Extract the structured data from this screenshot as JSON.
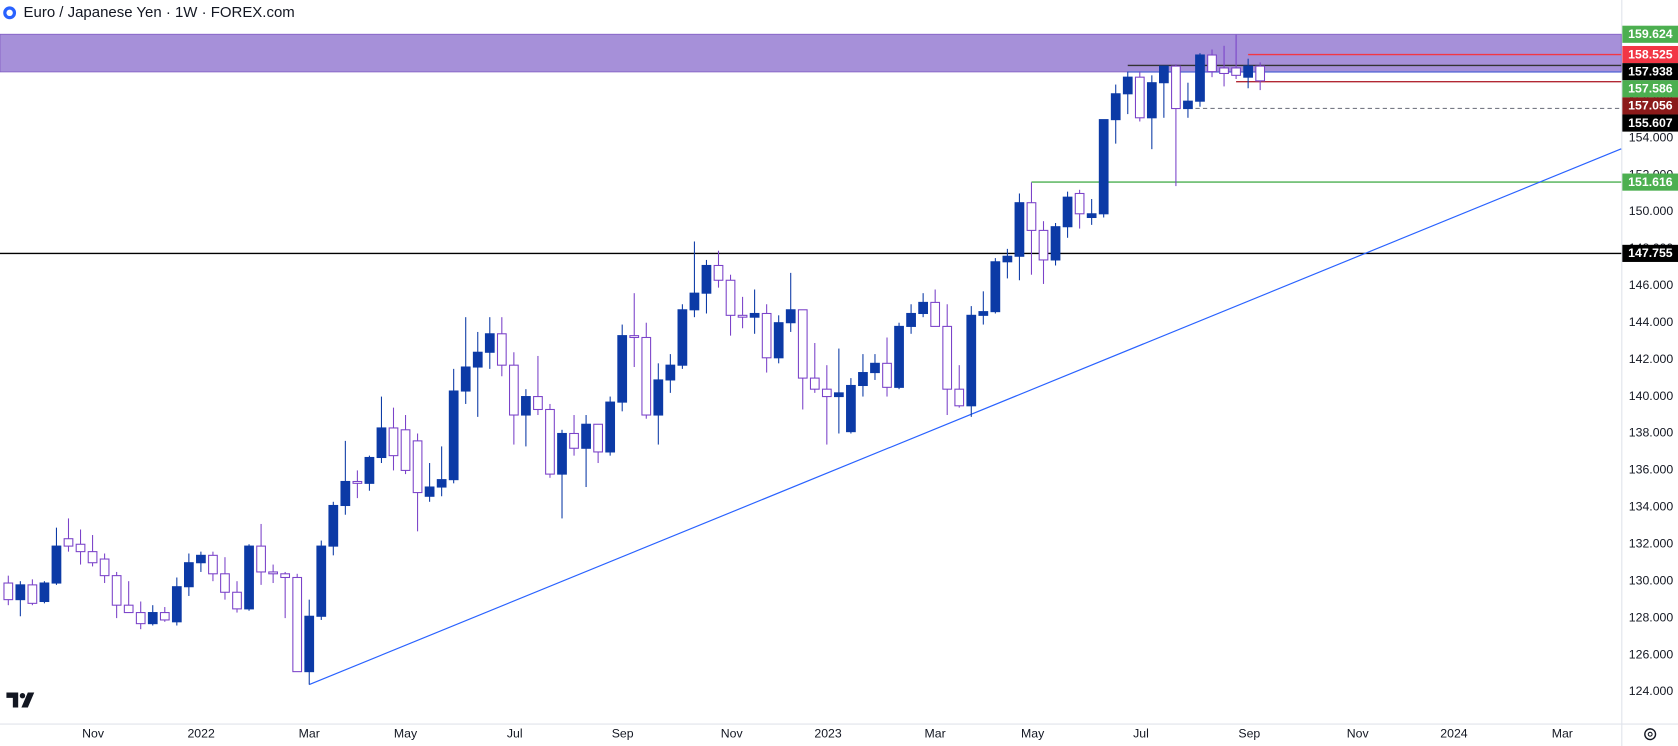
{
  "chart_data": {
    "type": "candlestick",
    "title": "Euro / Japanese Yen · 1W · FOREX.com",
    "up_color": "#0c3aa6",
    "down_color": "#7b43c9",
    "open": [
      129.9,
      129.0,
      129.8,
      128.9,
      129.9,
      132.3,
      132.0,
      131.6,
      131.2,
      130.3,
      128.7,
      128.3,
      127.7,
      128.3,
      127.8,
      129.7,
      131.0,
      131.4,
      130.4,
      129.4,
      128.5,
      131.9,
      130.5,
      130.4,
      130.2,
      125.1,
      128.1,
      131.9,
      134.1,
      135.4,
      135.3,
      136.7,
      138.3,
      138.2,
      137.6,
      134.6,
      135.1,
      135.5,
      140.3,
      141.6,
      142.4,
      143.4,
      141.7,
      139.0,
      140.0,
      139.3,
      135.8,
      138.0,
      137.2,
      138.5,
      137.0,
      139.7,
      143.3,
      143.2,
      139.0,
      140.9,
      141.7,
      144.7,
      145.6,
      147.1,
      146.3,
      144.4,
      144.3,
      144.5,
      142.1,
      144.0,
      144.7,
      141.0,
      140.4,
      140.0,
      138.1,
      140.6,
      141.3,
      141.8,
      140.5,
      143.8,
      144.5,
      145.1,
      143.8,
      140.4,
      139.5,
      144.4,
      144.6,
      147.3,
      147.6,
      150.5,
      149.0,
      147.4,
      149.2,
      151.0,
      149.7,
      149.9,
      155.0,
      156.4,
      157.3,
      155.1,
      157.0,
      157.9,
      155.6,
      156.0,
      158.5,
      157.8,
      157.8,
      157.3,
      157.9
    ],
    "high": [
      130.3,
      130.0,
      130.1,
      130.0,
      132.9,
      133.4,
      132.8,
      132.5,
      131.5,
      130.5,
      130.0,
      128.9,
      128.7,
      128.6,
      130.2,
      131.5,
      131.6,
      131.6,
      131.3,
      130.0,
      132.0,
      133.1,
      130.9,
      130.5,
      130.4,
      129.0,
      132.2,
      134.3,
      137.6,
      136.0,
      136.8,
      140.0,
      139.4,
      139.0,
      138.0,
      136.4,
      137.3,
      141.5,
      144.3,
      143.5,
      144.3,
      144.3,
      142.4,
      140.4,
      142.2,
      139.6,
      138.2,
      139.0,
      139.0,
      138.5,
      140.0,
      143.9,
      145.6,
      144.0,
      141.8,
      142.3,
      145.0,
      148.4,
      147.4,
      147.9,
      146.6,
      145.4,
      145.8,
      145.0,
      144.4,
      146.7,
      144.7,
      142.9,
      141.7,
      142.6,
      141.0,
      142.3,
      142.3,
      143.2,
      144.0,
      145.0,
      145.6,
      145.8,
      145.0,
      141.7,
      144.9,
      145.7,
      147.5,
      148.0,
      151.0,
      151.6,
      149.5,
      149.4,
      151.1,
      151.2,
      150.7,
      155.0,
      156.9,
      157.6,
      157.6,
      157.4,
      157.9,
      158.0,
      157.0,
      158.6,
      158.8,
      159.0,
      159.6,
      158.3,
      158.1
    ],
    "low": [
      128.7,
      128.1,
      128.7,
      128.8,
      129.8,
      131.6,
      130.9,
      130.8,
      129.9,
      128.0,
      128.3,
      127.4,
      127.6,
      127.8,
      127.6,
      129.2,
      130.5,
      130.0,
      129.0,
      128.3,
      128.4,
      129.8,
      129.9,
      128.0,
      125.1,
      124.4,
      127.9,
      131.4,
      133.6,
      134.5,
      134.9,
      136.4,
      136.0,
      135.8,
      132.7,
      134.3,
      134.6,
      135.3,
      139.6,
      138.9,
      141.5,
      141.1,
      137.4,
      137.3,
      139.0,
      135.6,
      133.4,
      136.8,
      135.1,
      136.4,
      136.8,
      139.2,
      141.6,
      138.8,
      137.4,
      140.2,
      141.5,
      144.3,
      144.5,
      145.9,
      143.3,
      143.7,
      143.4,
      141.3,
      141.8,
      143.5,
      139.3,
      140.2,
      137.4,
      138.0,
      138.0,
      140.0,
      140.9,
      140.0,
      140.4,
      143.4,
      144.3,
      143.8,
      139.0,
      139.4,
      138.9,
      143.9,
      144.5,
      146.4,
      146.3,
      146.6,
      146.1,
      147.1,
      148.6,
      149.1,
      149.3,
      149.7,
      153.7,
      155.3,
      154.9,
      153.4,
      155.1,
      151.4,
      155.1,
      155.7,
      157.3,
      156.8,
      157.2,
      156.7,
      156.6
    ],
    "close": [
      129.0,
      129.8,
      128.8,
      129.9,
      131.9,
      131.9,
      131.6,
      131.0,
      130.3,
      128.7,
      128.3,
      127.7,
      128.3,
      127.9,
      129.7,
      131.0,
      131.4,
      130.4,
      129.4,
      128.5,
      131.9,
      130.5,
      130.4,
      130.2,
      125.1,
      128.1,
      131.9,
      134.1,
      135.4,
      135.3,
      136.7,
      138.3,
      136.8,
      136.0,
      134.8,
      135.1,
      135.5,
      140.3,
      141.6,
      142.4,
      143.4,
      141.7,
      139.0,
      140.0,
      139.3,
      135.8,
      138.0,
      137.2,
      138.5,
      137.0,
      139.7,
      143.3,
      143.2,
      139.0,
      140.9,
      141.7,
      144.7,
      145.6,
      147.1,
      146.3,
      144.4,
      144.3,
      144.5,
      142.1,
      144.0,
      144.7,
      141.0,
      140.4,
      140.0,
      140.2,
      140.6,
      141.3,
      141.8,
      140.5,
      143.8,
      144.5,
      145.1,
      143.8,
      140.4,
      139.5,
      144.4,
      144.6,
      147.3,
      147.6,
      150.5,
      149.0,
      147.4,
      149.2,
      150.8,
      149.9,
      149.9,
      155.0,
      156.4,
      157.3,
      155.1,
      157.0,
      157.9,
      155.6,
      156.0,
      158.5,
      157.6,
      157.5,
      157.4,
      157.9,
      157.1
    ],
    "ylim": [
      122.29,
      161.48
    ],
    "yticks": [
      {
        "value": 124,
        "label": "124.000"
      },
      {
        "value": 126,
        "label": "126.000"
      },
      {
        "value": 128,
        "label": "128.000"
      },
      {
        "value": 130,
        "label": "130.000"
      },
      {
        "value": 132,
        "label": "132.000"
      },
      {
        "value": 134,
        "label": "134.000"
      },
      {
        "value": 136,
        "label": "136.000"
      },
      {
        "value": 138,
        "label": "138.000"
      },
      {
        "value": 140,
        "label": "140.000"
      },
      {
        "value": 142,
        "label": "142.000"
      },
      {
        "value": 144,
        "label": "144.000"
      },
      {
        "value": 146,
        "label": "146.000"
      },
      {
        "value": 148,
        "label": "148.000"
      },
      {
        "value": 150,
        "label": "150.000"
      },
      {
        "value": 152,
        "label": "152.000"
      },
      {
        "value": 154,
        "label": "154.000"
      },
      {
        "value": 156,
        "label": "156.000"
      }
    ],
    "xlim": [
      -0.69,
      134.0
    ],
    "xticks": [
      {
        "value": 7.04,
        "label": "Nov"
      },
      {
        "value": 16.02,
        "label": "2022"
      },
      {
        "value": 25,
        "label": "Mar"
      },
      {
        "value": 33,
        "label": "May"
      },
      {
        "value": 42.07,
        "label": "Jul"
      },
      {
        "value": 51.04,
        "label": "Sep"
      },
      {
        "value": 60.1,
        "label": "Nov"
      },
      {
        "value": 68.1,
        "label": "2023"
      },
      {
        "value": 77,
        "label": "Mar"
      },
      {
        "value": 85.1,
        "label": "May"
      },
      {
        "value": 94.1,
        "label": "Jul"
      },
      {
        "value": 103.1,
        "label": "Sep"
      },
      {
        "value": 112.1,
        "label": "Nov"
      },
      {
        "value": 120.1,
        "label": "2024"
      },
      {
        "value": 129.1,
        "label": "Mar"
      }
    ],
    "zone": {
      "low": 157.586,
      "high": 159.624,
      "color": "#a28bd8"
    },
    "lines": [
      {
        "value": 147.755,
        "color": "#000000"
      },
      {
        "value": 151.616,
        "from": 85,
        "color": "#4caf50"
      },
      {
        "value": 155.607,
        "from": 98,
        "color": "#787b86",
        "dashed": true
      },
      {
        "value": 158.525,
        "from": 103,
        "color": "#f23645"
      },
      {
        "value": 157.056,
        "from": 102,
        "color": "#b22833"
      },
      {
        "value": 157.938,
        "from": 93,
        "color": "#333333"
      },
      {
        "value": 157.586,
        "from": 93,
        "color": "#5b6bd6"
      }
    ],
    "trendline": {
      "x": [
        25,
        134
      ],
      "y": [
        124.4,
        153.42
      ],
      "color": "#2962ff"
    },
    "price_labels": [
      {
        "value": 159.624,
        "color": "#4caf50"
      },
      {
        "value": 158.525,
        "color": "#f23645"
      },
      {
        "value": 157.938,
        "color": "#000000"
      },
      {
        "value": 157.586,
        "color": "#4caf50"
      },
      {
        "value": 157.056,
        "color": "#8b1a1a"
      },
      {
        "value": 155.607,
        "color": "#000000"
      },
      {
        "value": 151.616,
        "color": "#4caf50"
      },
      {
        "value": 147.755,
        "color": "#000000"
      }
    ]
  }
}
